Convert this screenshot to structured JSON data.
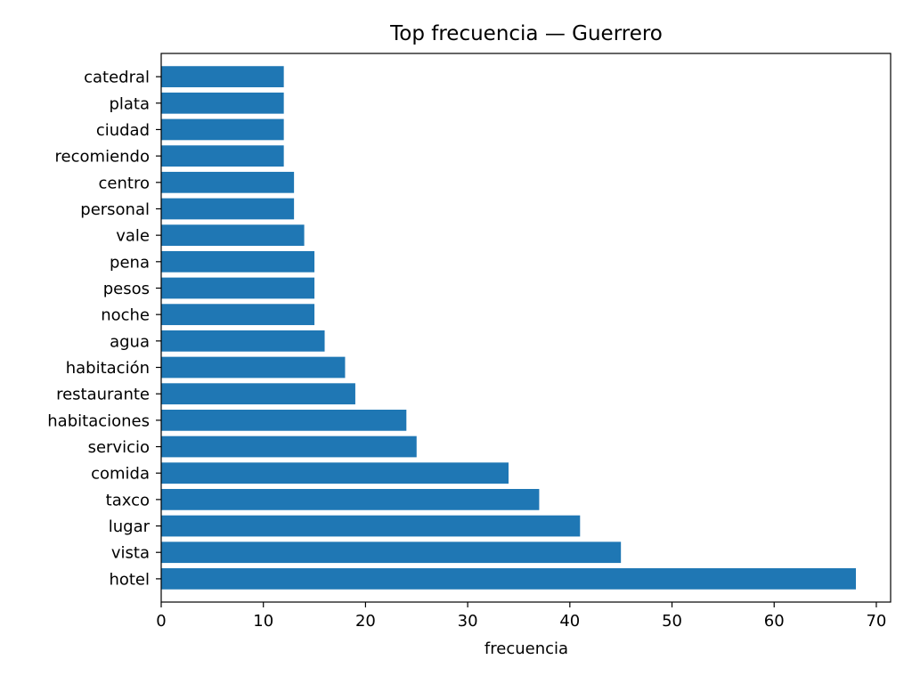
{
  "chart_data": {
    "type": "bar",
    "orientation": "horizontal",
    "title": "Top frecuencia — Guerrero",
    "xlabel": "frecuencia",
    "ylabel": "",
    "xlim": [
      0,
      71.4
    ],
    "xticks": [
      0,
      10,
      20,
      30,
      40,
      50,
      60,
      70
    ],
    "grid": false,
    "legend": "none",
    "bar_color": "#1f77b4",
    "categories": [
      "hotel",
      "vista",
      "lugar",
      "taxco",
      "comida",
      "servicio",
      "habitaciones",
      "restaurante",
      "habitación",
      "agua",
      "noche",
      "pesos",
      "pena",
      "vale",
      "personal",
      "centro",
      "recomiendo",
      "ciudad",
      "plata",
      "catedral"
    ],
    "values": [
      68,
      45,
      41,
      37,
      34,
      25,
      24,
      19,
      18,
      16,
      15,
      15,
      15,
      14,
      13,
      13,
      12,
      12,
      12,
      12
    ]
  }
}
